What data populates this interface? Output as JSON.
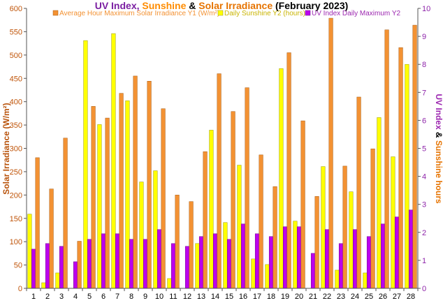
{
  "title": {
    "part1": "UV Index",
    "sep1": ", ",
    "part2": "Sunshine",
    "sep2": " & ",
    "part3": "Solar Irradiance",
    "part4": " (February 2023)"
  },
  "legend": {
    "irradiance": "Average Hour Maximum Solar Irradiance Y1 (W/m²)",
    "sunshine": "Daily Sunshine Y2 (hours)",
    "uv": "UV Index Daily Maximum Y2"
  },
  "axis_labels": {
    "y_left": "Solar Irradiance (W/m²)",
    "y_right_part1": "UV Index",
    "y_right_sep": " & ",
    "y_right_part2": "Sunshine hours"
  },
  "colors": {
    "irradiance": "#F39233",
    "sunshine": "#FFFF00",
    "uv": "#BB00EE",
    "title_uv": "#7B1FA2",
    "title_sun": "#FF8C00",
    "title_solar": "#E67300",
    "left_axis_label": "#B8520A",
    "right_axis_uv": "#9C27B0",
    "right_axis_sun": "#E67300",
    "left_tick": "#C0550A",
    "right_tick": "#8E24AA"
  },
  "chart_data": {
    "type": "bar",
    "categories": [
      "1",
      "2",
      "3",
      "4",
      "5",
      "6",
      "7",
      "8",
      "9",
      "10",
      "11",
      "12",
      "13",
      "14",
      "15",
      "16",
      "17",
      "18",
      "19",
      "20",
      "21",
      "22",
      "23",
      "24",
      "25",
      "26",
      "27",
      "28"
    ],
    "y1": {
      "label": "Solar Irradiance (W/m²)",
      "lim": [
        0,
        600
      ],
      "ticks": [
        0,
        50,
        100,
        150,
        200,
        250,
        300,
        350,
        400,
        450,
        500,
        550,
        600
      ]
    },
    "y2": {
      "label": "UV Index & Sunshine hours",
      "lim": [
        0,
        10
      ],
      "ticks": [
        0,
        1,
        2,
        3,
        4,
        5,
        6,
        7,
        8,
        9,
        10
      ]
    },
    "series": [
      {
        "name": "Average Hour Maximum Solar Irradiance Y1 (W/m²)",
        "axis": "y1",
        "values": [
          280,
          213,
          322,
          101,
          390,
          365,
          418,
          455,
          444,
          385,
          200,
          186,
          293,
          460,
          379,
          430,
          286,
          218,
          505,
          359,
          197,
          579,
          262,
          410,
          299,
          554,
          516,
          564
        ]
      },
      {
        "name": "Daily Sunshine Y2 (hours)",
        "axis": "y2",
        "values": [
          2.65,
          0.2,
          0.55,
          0.0,
          8.85,
          5.85,
          9.1,
          6.7,
          3.8,
          4.2,
          0.35,
          0.0,
          1.6,
          5.65,
          2.35,
          4.4,
          1.05,
          0.85,
          7.85,
          2.4,
          0.0,
          4.35,
          0.65,
          3.45,
          0.55,
          6.1,
          4.7,
          8.0
        ]
      },
      {
        "name": "UV Index Daily Maximum Y2",
        "axis": "y2",
        "values": [
          1.4,
          1.6,
          1.5,
          0.95,
          1.75,
          1.95,
          1.95,
          1.75,
          1.75,
          2.1,
          1.6,
          1.5,
          1.85,
          1.95,
          1.75,
          2.3,
          1.95,
          1.85,
          2.2,
          2.2,
          1.25,
          2.1,
          1.6,
          2.1,
          1.85,
          2.3,
          2.55,
          2.8
        ]
      }
    ],
    "grid": false,
    "legend_position": "top"
  }
}
